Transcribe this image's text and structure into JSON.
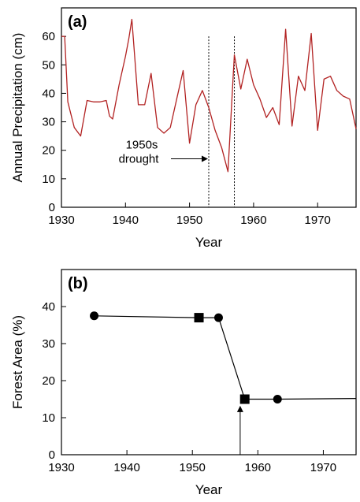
{
  "chart_data": [
    {
      "panel_label": "(a)",
      "type": "line",
      "xlabel": "Year",
      "ylabel": "Annual Precipitation (cm)",
      "xlim": [
        1930,
        1976
      ],
      "ylim": [
        0,
        70
      ],
      "xticks": [
        1930,
        1940,
        1950,
        1960,
        1970
      ],
      "yticks": [
        0,
        10,
        20,
        30,
        40,
        50,
        60
      ],
      "line_color": "#b22222",
      "reference_lines_x": [
        1953,
        1957
      ],
      "annotation": {
        "text_line1": "1950s",
        "text_line2": "drought",
        "points_to_year": 1953,
        "points_to_value": 17
      },
      "x": [
        1930,
        1930.5,
        1931,
        1932,
        1933,
        1934,
        1935,
        1936,
        1937,
        1937.5,
        1938,
        1939,
        1940,
        1940.5,
        1941,
        1942,
        1943,
        1944,
        1945,
        1946,
        1947,
        1948,
        1949,
        1950,
        1951,
        1952,
        1953,
        1954,
        1955,
        1956,
        1957,
        1958,
        1959,
        1960,
        1961,
        1962,
        1963,
        1964,
        1965,
        1966,
        1967,
        1968,
        1969,
        1970,
        1971,
        1972,
        1973,
        1974,
        1975,
        1976
      ],
      "y": [
        60,
        60,
        37,
        28,
        25,
        37.5,
        37,
        37,
        37.5,
        32,
        31,
        43,
        53,
        59,
        66,
        36,
        36,
        47,
        28,
        26,
        28,
        38,
        48,
        22.5,
        36,
        41,
        35,
        27,
        21,
        12.5,
        53.5,
        41.5,
        52,
        43,
        38,
        31.5,
        35,
        29,
        62.5,
        28.5,
        46,
        41,
        61,
        27,
        45,
        46,
        41,
        39,
        38,
        27.5
      ]
    },
    {
      "panel_label": "(b)",
      "type": "line",
      "xlabel": "Year",
      "ylabel": "Forest Area (%)",
      "xlim": [
        1930,
        1975
      ],
      "ylim": [
        0,
        50
      ],
      "xticks": [
        1930,
        1940,
        1950,
        1960,
        1970
      ],
      "yticks": [
        0,
        10,
        20,
        30,
        40
      ],
      "line_color": "#000000",
      "line_x": [
        1935,
        1951,
        1954,
        1958,
        1963,
        1975
      ],
      "line_y": [
        37.5,
        37,
        37,
        15,
        15,
        15.2
      ],
      "circles": [
        {
          "x": 1935,
          "y": 37.5
        },
        {
          "x": 1954,
          "y": 37
        },
        {
          "x": 1963,
          "y": 15
        }
      ],
      "squares": [
        {
          "x": 1951,
          "y": 37
        },
        {
          "x": 1958,
          "y": 15
        }
      ],
      "arrow_year": 1957.3,
      "arrow_from": 0,
      "arrow_to": 13
    }
  ]
}
